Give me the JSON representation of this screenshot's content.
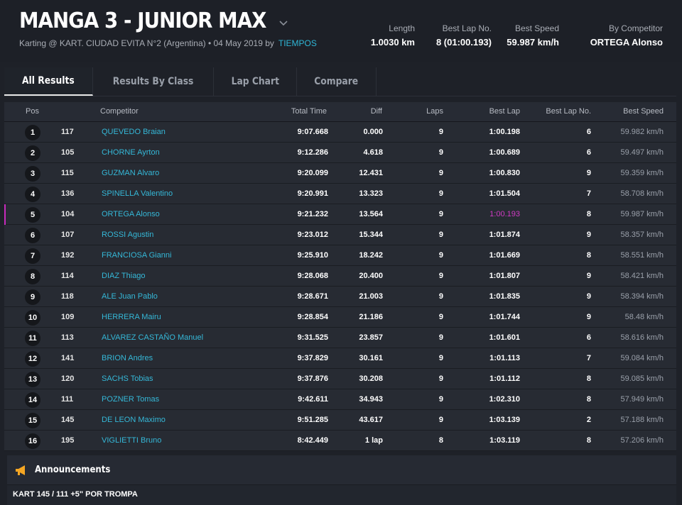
{
  "header": {
    "title": "MANGA 3 - JUNIOR MAX",
    "subtitle": "Karting @ KART. CIUDAD EVITA N°2 (Argentina) • 04 May 2019 by",
    "source_link": "TIEMPOS",
    "stats": [
      {
        "label": "Length",
        "value": "1.0030 km"
      },
      {
        "label": "Best Lap No.",
        "value": "8 (01:00.193)"
      },
      {
        "label": "Best Speed",
        "value": "59.987 km/h"
      },
      {
        "label": "By Competitor",
        "value": "ORTEGA Alonso"
      }
    ]
  },
  "tabs": [
    "All Results",
    "Results By Class",
    "Lap Chart",
    "Compare"
  ],
  "table": {
    "headers": {
      "pos": "Pos",
      "competitor": "Competitor",
      "total_time": "Total Time",
      "diff": "Diff",
      "laps": "Laps",
      "best_lap": "Best Lap",
      "best_lap_no": "Best Lap No.",
      "best_speed": "Best Speed"
    },
    "rows": [
      {
        "pos": "1",
        "num": "117",
        "name": "QUEVEDO Braian",
        "total": "9:07.668",
        "diff": "0.000",
        "laps": "9",
        "best_lap": "1:00.198",
        "best_no": "6",
        "speed": "59.982 km/h"
      },
      {
        "pos": "2",
        "num": "105",
        "name": "CHORNE Ayrton",
        "total": "9:12.286",
        "diff": "4.618",
        "laps": "9",
        "best_lap": "1:00.689",
        "best_no": "6",
        "speed": "59.497 km/h"
      },
      {
        "pos": "3",
        "num": "115",
        "name": "GUZMAN Alvaro",
        "total": "9:20.099",
        "diff": "12.431",
        "laps": "9",
        "best_lap": "1:00.830",
        "best_no": "9",
        "speed": "59.359 km/h"
      },
      {
        "pos": "4",
        "num": "136",
        "name": "SPINELLA Valentino",
        "total": "9:20.991",
        "diff": "13.323",
        "laps": "9",
        "best_lap": "1:01.504",
        "best_no": "7",
        "speed": "58.708 km/h"
      },
      {
        "pos": "5",
        "num": "104",
        "name": "ORTEGA Alonso",
        "total": "9:21.232",
        "diff": "13.564",
        "laps": "9",
        "best_lap": "1:00.193",
        "best_no": "8",
        "speed": "59.987 km/h",
        "highlight": true
      },
      {
        "pos": "6",
        "num": "107",
        "name": "ROSSI Agustin",
        "total": "9:23.012",
        "diff": "15.344",
        "laps": "9",
        "best_lap": "1:01.874",
        "best_no": "9",
        "speed": "58.357 km/h"
      },
      {
        "pos": "7",
        "num": "192",
        "name": "FRANCIOSA Gianni",
        "total": "9:25.910",
        "diff": "18.242",
        "laps": "9",
        "best_lap": "1:01.669",
        "best_no": "8",
        "speed": "58.551 km/h"
      },
      {
        "pos": "8",
        "num": "114",
        "name": "DIAZ Thiago",
        "total": "9:28.068",
        "diff": "20.400",
        "laps": "9",
        "best_lap": "1:01.807",
        "best_no": "9",
        "speed": "58.421 km/h"
      },
      {
        "pos": "9",
        "num": "118",
        "name": "ALE Juan Pablo",
        "total": "9:28.671",
        "diff": "21.003",
        "laps": "9",
        "best_lap": "1:01.835",
        "best_no": "9",
        "speed": "58.394 km/h"
      },
      {
        "pos": "10",
        "num": "109",
        "name": "HERRERA Mairu",
        "total": "9:28.854",
        "diff": "21.186",
        "laps": "9",
        "best_lap": "1:01.744",
        "best_no": "9",
        "speed": "58.48 km/h"
      },
      {
        "pos": "11",
        "num": "113",
        "name": "ALVAREZ CASTAÑO Manuel",
        "total": "9:31.525",
        "diff": "23.857",
        "laps": "9",
        "best_lap": "1:01.601",
        "best_no": "6",
        "speed": "58.616 km/h"
      },
      {
        "pos": "12",
        "num": "141",
        "name": "BRION Andres",
        "total": "9:37.829",
        "diff": "30.161",
        "laps": "9",
        "best_lap": "1:01.113",
        "best_no": "7",
        "speed": "59.084 km/h"
      },
      {
        "pos": "13",
        "num": "120",
        "name": "SACHS Tobias",
        "total": "9:37.876",
        "diff": "30.208",
        "laps": "9",
        "best_lap": "1:01.112",
        "best_no": "8",
        "speed": "59.085 km/h"
      },
      {
        "pos": "14",
        "num": "111",
        "name": "POZNER Tomas",
        "total": "9:42.611",
        "diff": "34.943",
        "laps": "9",
        "best_lap": "1:02.310",
        "best_no": "8",
        "speed": "57.949 km/h"
      },
      {
        "pos": "15",
        "num": "145",
        "name": "DE LEON Maximo",
        "total": "9:51.285",
        "diff": "43.617",
        "laps": "9",
        "best_lap": "1:03.139",
        "best_no": "2",
        "speed": "57.188 km/h"
      },
      {
        "pos": "16",
        "num": "195",
        "name": "VIGLIETTI Bruno",
        "total": "8:42.449",
        "diff": "1 lap",
        "laps": "8",
        "best_lap": "1:03.119",
        "best_no": "8",
        "speed": "57.206 km/h"
      }
    ]
  },
  "announcements": {
    "title": "Announcements",
    "text": "KART 145 / 111 +5\" POR TROMPA",
    "icon": "megaphone-icon"
  },
  "colors": {
    "link": "#35b8d8",
    "highlight": "#c82bbd",
    "accent": "#f5a623"
  }
}
